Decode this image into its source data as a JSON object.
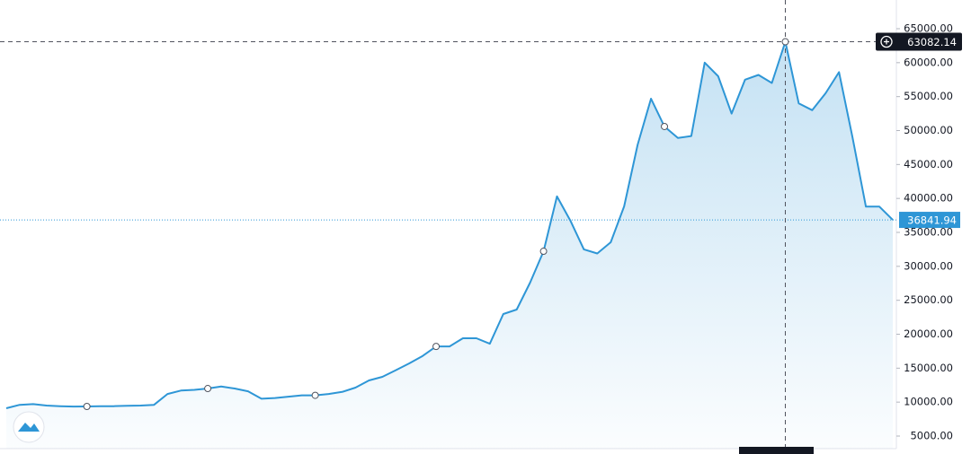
{
  "chart_data": {
    "type": "area",
    "color": "#2e96d6",
    "values": [
      9100,
      9600,
      9700,
      9500,
      9400,
      9350,
      9360,
      9400,
      9400,
      9450,
      9500,
      9600,
      11200,
      11700,
      11800,
      12000,
      12300,
      12000,
      11600,
      10500,
      10600,
      10800,
      11000,
      11000,
      11200,
      11500,
      12140,
      13200,
      13720,
      14700,
      15700,
      16800,
      18200,
      18200,
      19400,
      19400,
      18600,
      22970,
      23630,
      27600,
      32220,
      40300,
      36700,
      32500,
      31900,
      33550,
      38830,
      47900,
      54690,
      50600,
      48900,
      49200,
      60000,
      58000,
      52500,
      57500,
      58200,
      57000,
      63082.14,
      54000,
      53000,
      55500,
      58600,
      49000,
      38800,
      38800,
      36841.94
    ],
    "ylim": [
      3150,
      69230
    ],
    "yticks": [
      {
        "value": 65000,
        "label": "65000.00"
      },
      {
        "value": 60000,
        "label": "60000.00"
      },
      {
        "value": 55000,
        "label": "55000.00"
      },
      {
        "value": 50000,
        "label": "50000.00"
      },
      {
        "value": 45000,
        "label": "45000.00"
      },
      {
        "value": 40000,
        "label": "40000.00"
      },
      {
        "value": 35000,
        "label": "35000.00"
      },
      {
        "value": 30000,
        "label": "30000.00"
      },
      {
        "value": 25000,
        "label": "25000.00"
      },
      {
        "value": 20000,
        "label": "20000.00"
      },
      {
        "value": 15000,
        "label": "15000.00"
      },
      {
        "value": 10000,
        "label": "10000.00"
      },
      {
        "value": 5000,
        "label": "5000.00"
      }
    ],
    "crosshair_index": 58,
    "grid": false
  }
}
